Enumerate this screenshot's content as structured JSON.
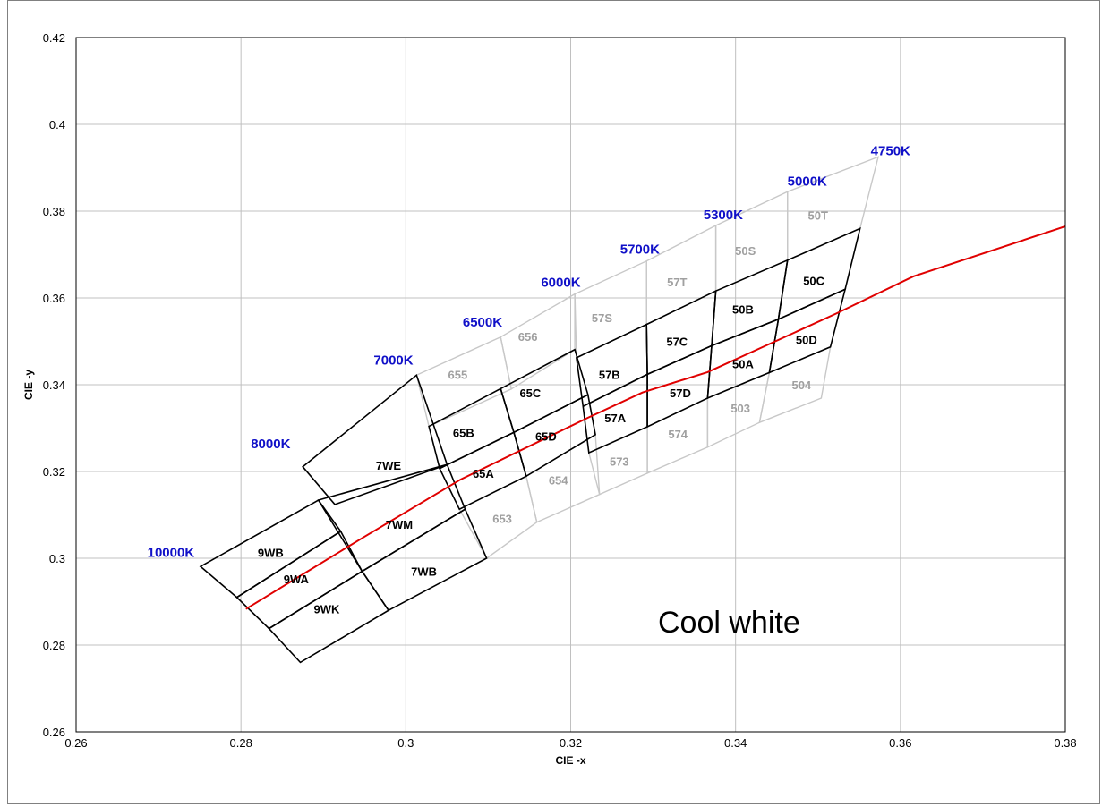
{
  "chart_data": {
    "type": "scatter",
    "xlabel": "CIE -x",
    "ylabel": "CIE -y",
    "xlim": [
      0.26,
      0.38
    ],
    "ylim": [
      0.26,
      0.42
    ],
    "x_ticks": [
      "0.26",
      "0.28",
      "0.3",
      "0.32",
      "0.34",
      "0.36",
      "0.38"
    ],
    "y_ticks": [
      "0.26",
      "0.28",
      "0.3",
      "0.32",
      "0.34",
      "0.36",
      "0.38",
      "0.4",
      "0.42"
    ],
    "grid": true,
    "annotation": "Cool white",
    "colors": {
      "locus": "#e00000",
      "active_bin": "#000000",
      "inactive_bin": "#c8c8c8",
      "inactive_label": "#a0a0a0",
      "cct_label": "#1010c8",
      "grid": "#c0c0c0"
    },
    "planckian_locus": {
      "x": [
        0.2806,
        0.295,
        0.3067,
        0.3221,
        0.3287,
        0.3366,
        0.3447,
        0.3522,
        0.3616,
        0.38
      ],
      "y": [
        0.2883,
        0.305,
        0.3182,
        0.3324,
        0.3382,
        0.3429,
        0.3499,
        0.3564,
        0.365,
        0.3765
      ]
    },
    "cct_labels": [
      {
        "text": "10000K",
        "x": 0.2715,
        "y": 0.3013
      },
      {
        "text": "8000K",
        "x": 0.2836,
        "y": 0.3264
      },
      {
        "text": "7000K",
        "x": 0.2985,
        "y": 0.3457
      },
      {
        "text": "6500K",
        "x": 0.3093,
        "y": 0.3544
      },
      {
        "text": "6000K",
        "x": 0.3188,
        "y": 0.3636
      },
      {
        "text": "5700K",
        "x": 0.3284,
        "y": 0.3712
      },
      {
        "text": "5300K",
        "x": 0.3385,
        "y": 0.3792
      },
      {
        "text": "5000K",
        "x": 0.3487,
        "y": 0.3869
      },
      {
        "text": "4750K",
        "x": 0.3588,
        "y": 0.3939
      }
    ],
    "bins": [
      {
        "name": "9WB",
        "active": true,
        "label": [
          0.2836,
          0.3013
        ],
        "pts": [
          [
            0.2751,
            0.2981
          ],
          [
            0.2894,
            0.3134
          ],
          [
            0.2921,
            0.3062
          ],
          [
            0.2795,
            0.291
          ]
        ]
      },
      {
        "name": "9WA",
        "active": true,
        "label": [
          0.2867,
          0.2953
        ],
        "pts": [
          [
            0.2795,
            0.291
          ],
          [
            0.2921,
            0.3062
          ],
          [
            0.2947,
            0.297
          ],
          [
            0.2834,
            0.2838
          ]
        ]
      },
      {
        "name": "9WK",
        "active": true,
        "label": [
          0.2904,
          0.2884
        ],
        "pts": [
          [
            0.2834,
            0.2838
          ],
          [
            0.2947,
            0.297
          ],
          [
            0.2979,
            0.288
          ],
          [
            0.2872,
            0.276
          ]
        ]
      },
      {
        "name": "7WE",
        "active": true,
        "label": [
          0.2979,
          0.3214
        ],
        "pts": [
          [
            0.2875,
            0.3211
          ],
          [
            0.3013,
            0.3422
          ],
          [
            0.305,
            0.3216
          ],
          [
            0.2914,
            0.3124
          ]
        ]
      },
      {
        "name": "7WM",
        "active": true,
        "label": [
          0.2992,
          0.3078
        ],
        "pts": [
          [
            0.2894,
            0.3134
          ],
          [
            0.305,
            0.3216
          ],
          [
            0.3072,
            0.3113
          ],
          [
            0.2947,
            0.297
          ]
        ]
      },
      {
        "name": "7WB",
        "active": true,
        "label": [
          0.3022,
          0.297
        ],
        "pts": [
          [
            0.2947,
            0.297
          ],
          [
            0.3072,
            0.3113
          ],
          [
            0.3098,
            0.3
          ],
          [
            0.2979,
            0.288
          ]
        ]
      },
      {
        "name": "65B",
        "active": true,
        "label": [
          0.307,
          0.329
        ],
        "pts": [
          [
            0.3028,
            0.3304
          ],
          [
            0.3115,
            0.3391
          ],
          [
            0.3131,
            0.329
          ],
          [
            0.3041,
            0.3207
          ]
        ]
      },
      {
        "name": "65A",
        "active": true,
        "label": [
          0.3094,
          0.3196
        ],
        "pts": [
          [
            0.3041,
            0.3207
          ],
          [
            0.3131,
            0.329
          ],
          [
            0.3146,
            0.3189
          ],
          [
            0.3065,
            0.3113
          ]
        ]
      },
      {
        "name": "65C",
        "active": true,
        "label": [
          0.3151,
          0.3381
        ],
        "pts": [
          [
            0.3115,
            0.3391
          ],
          [
            0.3205,
            0.3481
          ],
          [
            0.3221,
            0.3377
          ],
          [
            0.3131,
            0.329
          ]
        ]
      },
      {
        "name": "65D",
        "active": true,
        "label": [
          0.317,
          0.3281
        ],
        "pts": [
          [
            0.3131,
            0.329
          ],
          [
            0.3221,
            0.3377
          ],
          [
            0.323,
            0.3285
          ],
          [
            0.3146,
            0.3189
          ]
        ]
      },
      {
        "name": "57B",
        "active": true,
        "label": [
          0.3247,
          0.3424
        ],
        "pts": [
          [
            0.3207,
            0.3462
          ],
          [
            0.3292,
            0.3539
          ],
          [
            0.3293,
            0.3424
          ],
          [
            0.3215,
            0.335
          ]
        ]
      },
      {
        "name": "57A",
        "active": true,
        "label": [
          0.3254,
          0.3324
        ],
        "pts": [
          [
            0.3215,
            0.335
          ],
          [
            0.3293,
            0.3424
          ],
          [
            0.3293,
            0.3303
          ],
          [
            0.3222,
            0.3243
          ]
        ]
      },
      {
        "name": "57C",
        "active": true,
        "label": [
          0.3329,
          0.35
        ],
        "pts": [
          [
            0.3292,
            0.3539
          ],
          [
            0.3376,
            0.3616
          ],
          [
            0.3371,
            0.349
          ],
          [
            0.3293,
            0.3424
          ]
        ]
      },
      {
        "name": "57D",
        "active": true,
        "label": [
          0.3333,
          0.3381
        ],
        "pts": [
          [
            0.3293,
            0.3424
          ],
          [
            0.3371,
            0.349
          ],
          [
            0.3366,
            0.3369
          ],
          [
            0.3293,
            0.3303
          ]
        ]
      },
      {
        "name": "50B",
        "active": true,
        "label": [
          0.3409,
          0.3574
        ],
        "pts": [
          [
            0.3376,
            0.3616
          ],
          [
            0.3463,
            0.3687
          ],
          [
            0.3452,
            0.3551
          ],
          [
            0.3371,
            0.349
          ]
        ]
      },
      {
        "name": "50A",
        "active": true,
        "label": [
          0.3409,
          0.3448
        ],
        "pts": [
          [
            0.3371,
            0.349
          ],
          [
            0.3452,
            0.3551
          ],
          [
            0.3441,
            0.3428
          ],
          [
            0.3366,
            0.3369
          ]
        ]
      },
      {
        "name": "50C",
        "active": true,
        "label": [
          0.3495,
          0.364
        ],
        "pts": [
          [
            0.3463,
            0.3687
          ],
          [
            0.3551,
            0.376
          ],
          [
            0.3533,
            0.362
          ],
          [
            0.3452,
            0.3551
          ]
        ]
      },
      {
        "name": "50D",
        "active": true,
        "label": [
          0.3486,
          0.3504
        ],
        "pts": [
          [
            0.3452,
            0.3551
          ],
          [
            0.3533,
            0.362
          ],
          [
            0.3515,
            0.3487
          ],
          [
            0.3441,
            0.3428
          ]
        ]
      },
      {
        "name": "655",
        "active": false,
        "label": [
          0.3063,
          0.3424
        ],
        "pts": [
          [
            0.3013,
            0.3422
          ],
          [
            0.3115,
            0.351
          ],
          [
            0.3128,
            0.339
          ],
          [
            0.3028,
            0.3304
          ]
        ]
      },
      {
        "name": "656",
        "active": false,
        "label": [
          0.3148,
          0.3511
        ],
        "pts": [
          [
            0.3115,
            0.351
          ],
          [
            0.3205,
            0.3609
          ],
          [
            0.3205,
            0.3481
          ],
          [
            0.3128,
            0.339
          ]
        ]
      },
      {
        "name": "653",
        "active": false,
        "label": [
          0.3117,
          0.3092
        ],
        "pts": [
          [
            0.3065,
            0.3113
          ],
          [
            0.3146,
            0.3189
          ],
          [
            0.3159,
            0.3083
          ],
          [
            0.3098,
            0.3
          ]
        ]
      },
      {
        "name": "654",
        "active": false,
        "label": [
          0.3185,
          0.318
        ],
        "pts": [
          [
            0.3146,
            0.3189
          ],
          [
            0.323,
            0.3285
          ],
          [
            0.3235,
            0.3147
          ],
          [
            0.3159,
            0.3083
          ]
        ]
      },
      {
        "name": "57S",
        "active": false,
        "label": [
          0.3238,
          0.3555
        ],
        "pts": [
          [
            0.3205,
            0.3609
          ],
          [
            0.3292,
            0.3685
          ],
          [
            0.3292,
            0.3539
          ],
          [
            0.3207,
            0.3462
          ]
        ]
      },
      {
        "name": "57T",
        "active": false,
        "label": [
          0.3329,
          0.3637
        ],
        "pts": [
          [
            0.3292,
            0.3685
          ],
          [
            0.3376,
            0.3767
          ],
          [
            0.3376,
            0.3616
          ],
          [
            0.3292,
            0.3539
          ]
        ]
      },
      {
        "name": "573",
        "active": false,
        "label": [
          0.3259,
          0.3224
        ],
        "pts": [
          [
            0.3222,
            0.3243
          ],
          [
            0.3293,
            0.3303
          ],
          [
            0.3293,
            0.3196
          ],
          [
            0.3235,
            0.3147
          ]
        ]
      },
      {
        "name": "574",
        "active": false,
        "label": [
          0.333,
          0.3287
        ],
        "pts": [
          [
            0.3293,
            0.3303
          ],
          [
            0.3366,
            0.3369
          ],
          [
            0.3366,
            0.3256
          ],
          [
            0.3293,
            0.3196
          ]
        ]
      },
      {
        "name": "50S",
        "active": false,
        "label": [
          0.3412,
          0.3709
        ],
        "pts": [
          [
            0.3376,
            0.3767
          ],
          [
            0.3463,
            0.3845
          ],
          [
            0.3463,
            0.3687
          ],
          [
            0.3376,
            0.3616
          ]
        ]
      },
      {
        "name": "50T",
        "active": false,
        "label": [
          0.35,
          0.3791
        ],
        "pts": [
          [
            0.3463,
            0.3845
          ],
          [
            0.3573,
            0.3925
          ],
          [
            0.3551,
            0.376
          ],
          [
            0.3463,
            0.3687
          ]
        ]
      },
      {
        "name": "503",
        "active": false,
        "label": [
          0.3406,
          0.3346
        ],
        "pts": [
          [
            0.3366,
            0.3369
          ],
          [
            0.3441,
            0.3428
          ],
          [
            0.3429,
            0.3313
          ],
          [
            0.3366,
            0.3256
          ]
        ]
      },
      {
        "name": "504",
        "active": false,
        "label": [
          0.348,
          0.34
        ],
        "pts": [
          [
            0.3441,
            0.3428
          ],
          [
            0.3515,
            0.3487
          ],
          [
            0.3504,
            0.3369
          ],
          [
            0.3429,
            0.3313
          ]
        ]
      }
    ]
  }
}
